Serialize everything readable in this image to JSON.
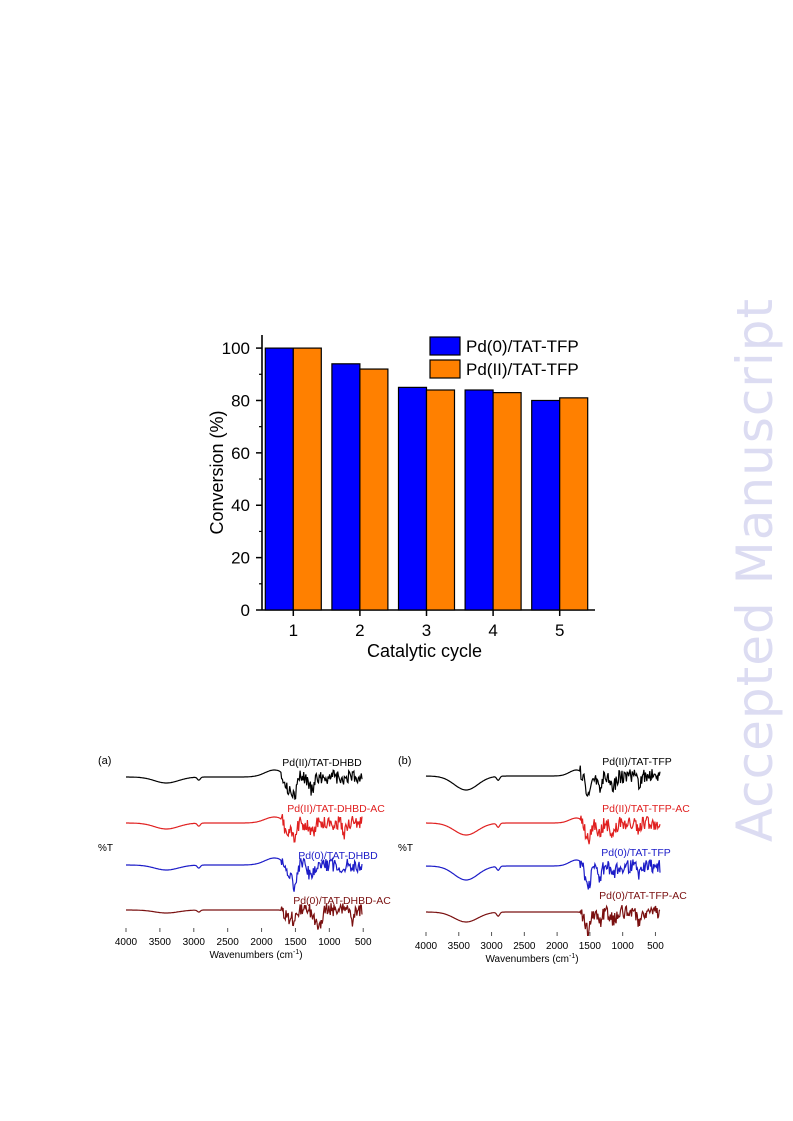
{
  "watermark": "Accepted Manuscript",
  "chart_data": [
    {
      "type": "bar",
      "xlabel": "Catalytic cycle",
      "ylabel": "Conversion (%)",
      "categories": [
        "1",
        "2",
        "3",
        "4",
        "5"
      ],
      "ylim": [
        0,
        100
      ],
      "yticks": [
        0,
        20,
        40,
        60,
        80,
        100
      ],
      "legend_position": "top-right",
      "series": [
        {
          "name": "Pd(0)/TAT-TFP",
          "color": "#0000ff",
          "values": [
            100,
            94,
            85,
            84,
            80
          ]
        },
        {
          "name": "Pd(II)/TAT-TFP",
          "color": "#ff8000",
          "values": [
            100,
            92,
            84,
            83,
            81
          ]
        }
      ]
    },
    {
      "type": "line",
      "panel_label": "(a)",
      "xlabel": "Wavenumbers (cm",
      "xlabel_sup": "-1",
      "xlabel_close": ")",
      "ylabel": "%T",
      "xlim": [
        4000,
        400
      ],
      "xticks": [
        4000,
        3500,
        3000,
        2500,
        2000,
        1500,
        1000,
        500
      ],
      "series": [
        {
          "name": "Pd(II)/TAT-DHBD",
          "color": "#000000"
        },
        {
          "name": "Pd(II)/TAT-DHBD-AC",
          "color": "#e02020"
        },
        {
          "name": "Pd(0)/TAT-DHBD",
          "color": "#1c1cc8"
        },
        {
          "name": "Pd(0)/TAT-DHBD-AC",
          "color": "#7a1010"
        }
      ]
    },
    {
      "type": "line",
      "panel_label": "(b)",
      "xlabel": "Wavenumbers (cm",
      "xlabel_sup": "-1",
      "xlabel_close": ")",
      "ylabel": "%T",
      "xlim": [
        4000,
        400
      ],
      "xticks": [
        4000,
        3500,
        3000,
        2500,
        2000,
        1500,
        1000,
        500
      ],
      "series": [
        {
          "name": "Pd(II)/TAT-TFP",
          "color": "#000000"
        },
        {
          "name": "Pd(II)/TAT-TFP-AC",
          "color": "#e02020"
        },
        {
          "name": "Pd(0)/TAT-TFP",
          "color": "#1c1cc8"
        },
        {
          "name": "Pd(0)/TAT-TFP-AC",
          "color": "#7a1010"
        }
      ]
    }
  ]
}
